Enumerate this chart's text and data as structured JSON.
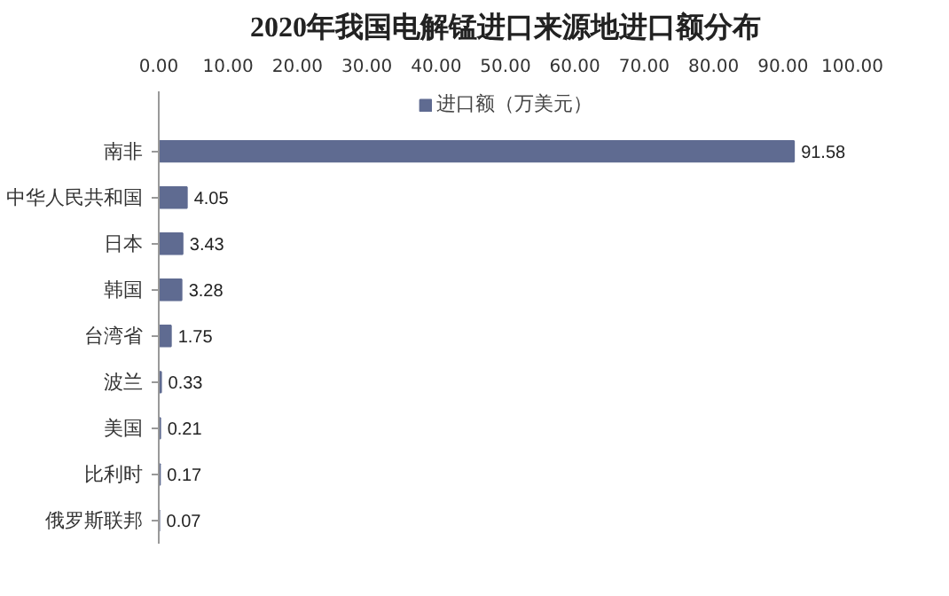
{
  "chart_data": {
    "type": "bar",
    "orientation": "horizontal",
    "title": "2020年我国电解锰进口来源地进口额分布",
    "categories": [
      "南非",
      "中华人民共和国",
      "日本",
      "韩国",
      "台湾省",
      "波兰",
      "美国",
      "比利时",
      "俄罗斯联邦"
    ],
    "series": [
      {
        "name": "进口额（万美元）",
        "color": "#5f6b91",
        "values": [
          91.58,
          4.05,
          3.43,
          3.28,
          1.75,
          0.33,
          0.21,
          0.17,
          0.07
        ]
      }
    ],
    "xlim": [
      0,
      100
    ],
    "xticks": [
      {
        "value": 0,
        "label": "0.00"
      },
      {
        "value": 10,
        "label": "10.00"
      },
      {
        "value": 20,
        "label": "20.00"
      },
      {
        "value": 30,
        "label": "30.00"
      },
      {
        "value": 40,
        "label": "40.00"
      },
      {
        "value": 50,
        "label": "50.00"
      },
      {
        "value": 60,
        "label": "60.00"
      },
      {
        "value": 70,
        "label": "70.00"
      },
      {
        "value": 80,
        "label": "80.00"
      },
      {
        "value": 90,
        "label": "90.00"
      },
      {
        "value": 100,
        "label": "100.00"
      }
    ],
    "data_labels": true,
    "grid": false,
    "legend": "top"
  }
}
